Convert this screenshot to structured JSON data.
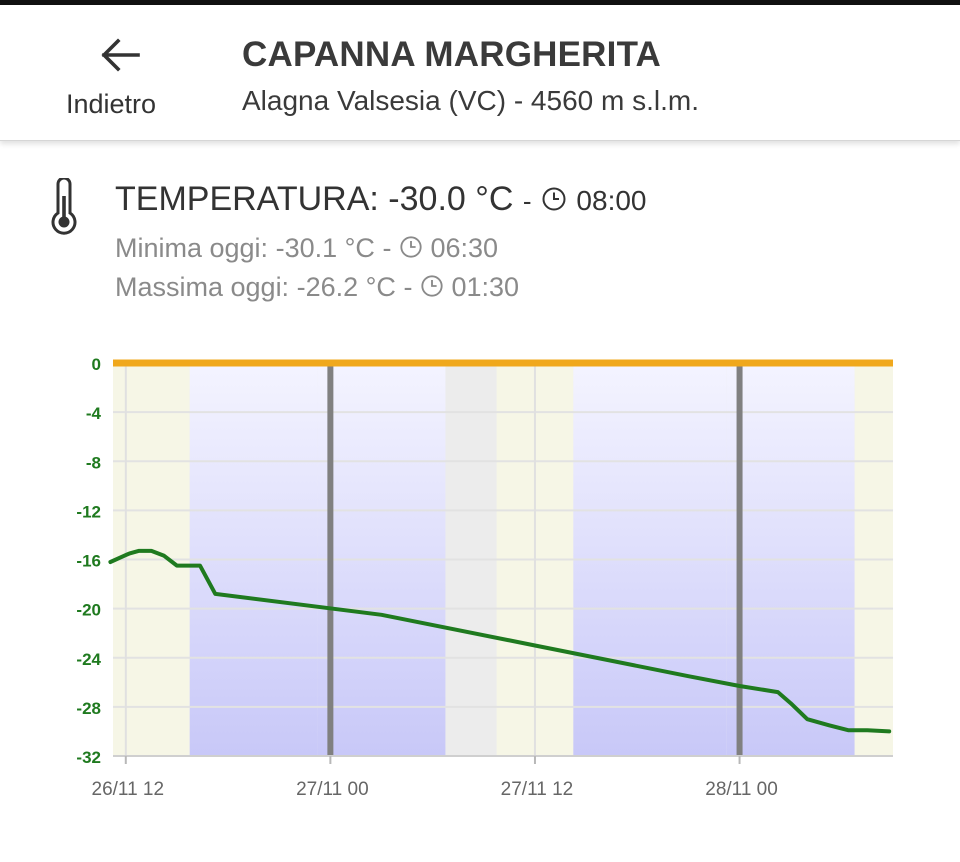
{
  "header": {
    "back_label": "Indietro",
    "station_name": "CAPANNA MARGHERITA",
    "station_subtitle": "Alagna Valsesia (VC) - 4560 m s.l.m."
  },
  "temperature": {
    "label": "TEMPERATURA:",
    "value": "-30.0 °C",
    "separator": "-",
    "time": "08:00",
    "min_label": "Minima oggi:",
    "min_value": "-30.1 °C",
    "min_time": "06:30",
    "max_label": "Massima oggi:",
    "max_value": "-26.2 °C",
    "max_time": "01:30"
  },
  "icons": {
    "back": "arrow-left-icon",
    "thermometer": "thermometer-icon",
    "clock": "clock-icon"
  },
  "colors": {
    "line": "#1f7a1f",
    "zero_line": "#f0a81c",
    "axis_label": "#1f7a1f",
    "day_band": "#f6f6e6",
    "night_band": "#c8c8f8",
    "midnight_line": "#808080"
  },
  "chart_data": {
    "type": "line",
    "title": "",
    "xlabel": "",
    "ylabel": "",
    "ylim": [
      -32,
      0
    ],
    "yticks": [
      0,
      -4,
      -8,
      -12,
      -16,
      -20,
      -24,
      -28,
      -32
    ],
    "x_unit": "hours",
    "xlim": [
      -1,
      60
    ],
    "xticks": [
      {
        "label": "26/11 12",
        "hour": 0
      },
      {
        "label": "27/11 00",
        "hour": 16
      },
      {
        "label": "27/11 12",
        "hour": 32
      },
      {
        "label": "28/11 00",
        "hour": 48
      }
    ],
    "midnights": [
      16,
      48
    ],
    "series": [
      {
        "name": "",
        "x": [
          -1.2,
          0.3,
          1.0,
          2.0,
          3.0,
          4.0,
          4.5,
          5.8,
          7.0,
          20.0,
          32.0,
          44.0,
          48.0,
          51.0,
          52.0,
          53.3,
          55.0,
          56.5,
          58.0,
          59.7
        ],
        "y": [
          -16.2,
          -15.5,
          -15.3,
          -15.3,
          -15.7,
          -16.5,
          -16.5,
          -16.5,
          -18.8,
          -20.5,
          -23.0,
          -25.5,
          -26.3,
          -26.8,
          -27.7,
          -29.0,
          -29.5,
          -29.9,
          -29.9,
          -30.0
        ]
      }
    ],
    "grid": true
  }
}
